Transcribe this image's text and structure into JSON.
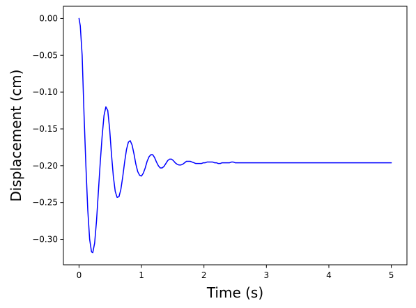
{
  "chart_data": {
    "type": "line",
    "title": "",
    "xlabel": "Time (s)",
    "ylabel": "Displacement (cm)",
    "xlim": [
      -0.25,
      5.25
    ],
    "ylim": [
      -0.3345,
      0.0165
    ],
    "xticks": [
      0,
      1,
      2,
      3,
      4,
      5
    ],
    "xtick_labels": [
      "0",
      "1",
      "2",
      "3",
      "4",
      "5"
    ],
    "yticks": [
      0.0,
      -0.05,
      -0.1,
      -0.15,
      -0.2,
      -0.25,
      -0.3
    ],
    "ytick_labels": [
      "0.00",
      "−0.05",
      "−0.10",
      "−0.15",
      "−0.20",
      "−0.25",
      "−0.30"
    ],
    "grid": false,
    "legend": "none",
    "series": [
      {
        "color": "#0000ff",
        "x": [
          0,
          0.02,
          0.05,
          0.08,
          0.11,
          0.14,
          0.17,
          0.2,
          0.22,
          0.25,
          0.28,
          0.31,
          0.34,
          0.37,
          0.4,
          0.43,
          0.46,
          0.49,
          0.52,
          0.55,
          0.58,
          0.61,
          0.64,
          0.67,
          0.7,
          0.73,
          0.76,
          0.79,
          0.82,
          0.85,
          0.88,
          0.91,
          0.94,
          0.97,
          1.0,
          1.03,
          1.06,
          1.09,
          1.12,
          1.15,
          1.18,
          1.21,
          1.24,
          1.27,
          1.3,
          1.33,
          1.36,
          1.39,
          1.42,
          1.45,
          1.48,
          1.51,
          1.54,
          1.57,
          1.6,
          1.63,
          1.66,
          1.69,
          1.72,
          1.75,
          1.78,
          1.81,
          1.84,
          1.87,
          1.9,
          1.93,
          1.96,
          1.99,
          2.02,
          2.05,
          2.08,
          2.11,
          2.14,
          2.17,
          2.2,
          2.23,
          2.26,
          2.29,
          2.32,
          2.35,
          2.38,
          2.41,
          2.44,
          2.47,
          2.5,
          2.53,
          2.56,
          2.59,
          2.62,
          2.65,
          2.68,
          2.71,
          2.74,
          2.77,
          2.8,
          2.83,
          2.86,
          2.89,
          2.92,
          2.95,
          2.98,
          3.0,
          3.2,
          3.5,
          4.0,
          4.5,
          5.0
        ],
        "y": [
          0.0,
          -0.01,
          -0.05,
          -0.13,
          -0.2,
          -0.26,
          -0.3,
          -0.317,
          -0.318,
          -0.305,
          -0.275,
          -0.235,
          -0.195,
          -0.16,
          -0.132,
          -0.12,
          -0.125,
          -0.15,
          -0.185,
          -0.215,
          -0.235,
          -0.243,
          -0.242,
          -0.232,
          -0.215,
          -0.195,
          -0.178,
          -0.168,
          -0.166,
          -0.172,
          -0.184,
          -0.198,
          -0.208,
          -0.213,
          -0.214,
          -0.21,
          -0.203,
          -0.194,
          -0.188,
          -0.185,
          -0.185,
          -0.189,
          -0.195,
          -0.2,
          -0.203,
          -0.203,
          -0.201,
          -0.197,
          -0.193,
          -0.191,
          -0.191,
          -0.193,
          -0.196,
          -0.198,
          -0.199,
          -0.199,
          -0.198,
          -0.196,
          -0.194,
          -0.194,
          -0.194,
          -0.195,
          -0.196,
          -0.197,
          -0.197,
          -0.197,
          -0.197,
          -0.196,
          -0.196,
          -0.195,
          -0.195,
          -0.195,
          -0.195,
          -0.196,
          -0.196,
          -0.197,
          -0.197,
          -0.196,
          -0.196,
          -0.196,
          -0.196,
          -0.196,
          -0.195,
          -0.195,
          -0.196,
          -0.196,
          -0.196,
          -0.196,
          -0.196,
          -0.196,
          -0.196,
          -0.196,
          -0.196,
          -0.196,
          -0.196,
          -0.196,
          -0.196,
          -0.196,
          -0.196,
          -0.196,
          -0.196,
          -0.196,
          -0.196,
          -0.196,
          -0.196,
          -0.196,
          -0.196
        ]
      }
    ]
  }
}
